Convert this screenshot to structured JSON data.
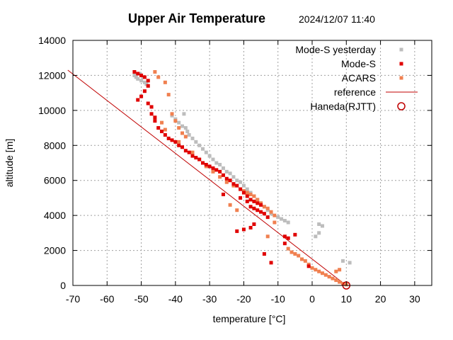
{
  "chart_data": {
    "type": "scatter",
    "title": "Upper Air Temperature",
    "timestamp": "2024/12/07 11:40",
    "xlabel": "temperature  [°C]",
    "ylabel": "altitude  [m]",
    "xlim": [
      -70,
      35
    ],
    "ylim": [
      0,
      14000
    ],
    "xticks": [
      -70,
      -60,
      -50,
      -40,
      -30,
      -20,
      -10,
      0,
      10,
      20,
      30
    ],
    "yticks": [
      0,
      2000,
      4000,
      6000,
      8000,
      10000,
      12000,
      14000
    ],
    "grid": true,
    "legend_position": "top-right",
    "colors": {
      "yesterday": "#bdbdbd",
      "modes": "#e00000",
      "acars": "#f08050",
      "reference": "#c00000",
      "haneda": "#c00000"
    },
    "series": [
      {
        "name": "Mode-S yesterday",
        "style": "points",
        "x": [
          -52,
          -51.5,
          -51,
          -50.5,
          -50,
          -49.5,
          -49,
          -48.5,
          -48,
          -41,
          -40,
          -39,
          -38,
          -37.5,
          -37,
          -36.5,
          -36,
          -35,
          -34,
          -33,
          -32,
          -31,
          -30,
          -29,
          -28,
          -27,
          -26,
          -25,
          -24,
          -23,
          -22,
          -21,
          -20,
          -19,
          -18,
          -17,
          -16,
          -15,
          -14,
          -13,
          -12,
          -10,
          -9,
          -8,
          -7,
          2,
          3,
          2,
          1,
          9,
          11
        ],
        "y": [
          12000,
          11900,
          11800,
          12100,
          11700,
          11900,
          11600,
          11500,
          11400,
          9700,
          9500,
          9300,
          9100,
          9800,
          9000,
          8800,
          8600,
          8400,
          8200,
          8000,
          7800,
          7600,
          7400,
          7200,
          7000,
          6900,
          6700,
          6500,
          6400,
          6200,
          6000,
          5900,
          5700,
          5500,
          5300,
          5100,
          4900,
          4700,
          4500,
          4300,
          4100,
          3900,
          3800,
          3700,
          3600,
          3500,
          3400,
          3000,
          2800,
          1400,
          1300
        ]
      },
      {
        "name": "Mode-S",
        "style": "points",
        "x": [
          -52,
          -51,
          -50,
          -49,
          -48,
          -48,
          -49,
          -50,
          -51,
          -48,
          -47,
          -47,
          -46,
          -46,
          -45,
          -44,
          -43,
          -42,
          -41,
          -40,
          -39,
          -38,
          -37,
          -36,
          -35,
          -34,
          -33,
          -32,
          -31,
          -30,
          -29,
          -28,
          -27,
          -26,
          -25,
          -24,
          -23,
          -22,
          -21,
          -20,
          -19,
          -18,
          -17,
          -16,
          -15,
          -21,
          -19,
          -18,
          -17,
          -16,
          -15,
          -14,
          -13,
          -8,
          -7,
          -5,
          -8,
          -12,
          -14,
          -17,
          -18,
          -20,
          -22,
          -26,
          -1
        ],
        "y": [
          12200,
          12100,
          12000,
          11900,
          11700,
          11400,
          11100,
          10800,
          10600,
          10400,
          10200,
          9800,
          9600,
          9400,
          9000,
          8800,
          8600,
          8400,
          8300,
          8200,
          8000,
          7900,
          7700,
          7600,
          7400,
          7300,
          7200,
          7000,
          6900,
          6800,
          6700,
          6600,
          6500,
          6300,
          6100,
          6000,
          5800,
          5700,
          5500,
          5300,
          5100,
          4900,
          4800,
          4700,
          4600,
          5000,
          4800,
          4500,
          4400,
          4300,
          4200,
          4100,
          3900,
          2800,
          2700,
          2900,
          2400,
          1300,
          1800,
          3500,
          3300,
          3200,
          3100,
          5200,
          1100
        ]
      },
      {
        "name": "ACARS",
        "style": "points",
        "x": [
          -46,
          -45,
          -43,
          -42,
          -41,
          -40,
          -39,
          -38,
          -37,
          -44,
          -43,
          -39,
          -35,
          -33,
          -31,
          -29,
          -27,
          -25,
          -23,
          -21,
          -20,
          -19,
          -18,
          -17,
          -16,
          -15,
          -14,
          -13,
          -12,
          -11,
          -24,
          -22,
          -13,
          -11,
          -7,
          -6,
          -5,
          -4,
          -3,
          -2,
          -1,
          0,
          1,
          2,
          3,
          4,
          5,
          6,
          7,
          8,
          9,
          10,
          8,
          7
        ],
        "y": [
          12200,
          11900,
          11600,
          10900,
          9800,
          9400,
          9000,
          8700,
          8500,
          9300,
          8900,
          8200,
          7600,
          7200,
          6800,
          6500,
          6200,
          5900,
          5700,
          5500,
          5400,
          5300,
          5200,
          5100,
          4900,
          4700,
          4500,
          4400,
          4200,
          4000,
          4600,
          4300,
          2800,
          3600,
          2100,
          1900,
          1800,
          1700,
          1500,
          1400,
          1200,
          1000,
          900,
          800,
          700,
          600,
          500,
          400,
          300,
          200,
          100,
          50,
          900,
          800
        ]
      },
      {
        "name": "reference",
        "style": "line",
        "x": [
          -71.5,
          10
        ],
        "y": [
          12300,
          0
        ]
      },
      {
        "name": "Haneda(RJTT)",
        "style": "circle",
        "x": [
          10
        ],
        "y": [
          0
        ]
      }
    ]
  }
}
